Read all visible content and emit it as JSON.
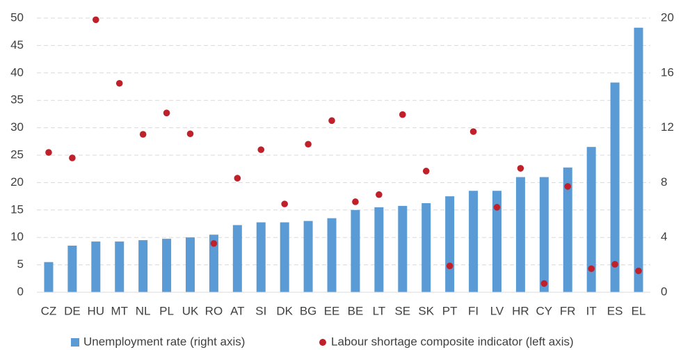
{
  "chart_data": {
    "type": "bar",
    "categories": [
      "CZ",
      "DE",
      "HU",
      "MT",
      "NL",
      "PL",
      "UK",
      "RO",
      "AT",
      "SI",
      "DK",
      "BG",
      "EE",
      "BE",
      "LT",
      "SE",
      "SK",
      "PT",
      "FI",
      "LV",
      "HR",
      "CY",
      "FR",
      "IT",
      "ES",
      "EL"
    ],
    "series": [
      {
        "name": "Unemployment rate (right axis)",
        "type": "bar",
        "axis": "y2",
        "color": "#5b9bd5",
        "values": [
          2.2,
          3.4,
          3.7,
          3.7,
          3.8,
          3.9,
          4.0,
          4.2,
          4.9,
          5.1,
          5.1,
          5.2,
          5.4,
          6.0,
          6.2,
          6.3,
          6.5,
          7.0,
          7.4,
          7.4,
          8.4,
          8.4,
          9.1,
          10.6,
          15.3,
          19.3
        ]
      },
      {
        "name": "Labour shortage composite indicator (left axis)",
        "type": "scatter",
        "axis": "y",
        "color": "#c0202a",
        "values": [
          25.5,
          24.5,
          49.7,
          38.1,
          28.8,
          32.7,
          28.9,
          8.9,
          20.8,
          26.0,
          16.1,
          27.0,
          31.3,
          16.5,
          17.8,
          32.4,
          22.1,
          4.8,
          29.3,
          15.5,
          22.6,
          1.6,
          19.3,
          4.3,
          5.1,
          3.9
        ]
      }
    ],
    "ylim": [
      0,
      50
    ],
    "yticks": [
      0,
      5,
      10,
      15,
      20,
      25,
      30,
      35,
      40,
      45,
      50
    ],
    "y2lim": [
      0,
      20
    ],
    "y2ticks": [
      0,
      4,
      8,
      12,
      16,
      20
    ],
    "grid": true,
    "legend": "bottom"
  }
}
